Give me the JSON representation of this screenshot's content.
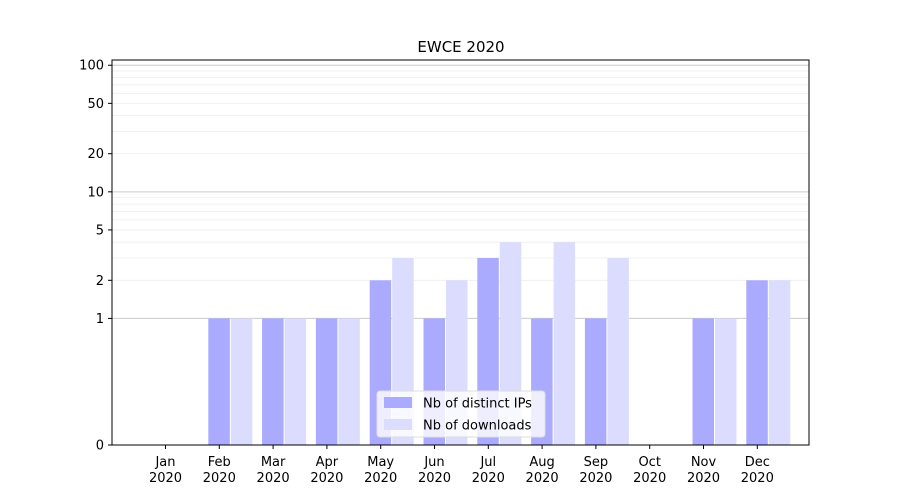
{
  "chart_data": {
    "type": "bar",
    "title": "EWCE 2020",
    "xlabel": "",
    "ylabel": "",
    "yscale": "symlog",
    "ylim": [
      0,
      110
    ],
    "yticks": [
      0,
      1,
      2,
      5,
      10,
      20,
      50,
      100
    ],
    "grid": true,
    "legend_position": "lower center",
    "categories": [
      [
        "Jan",
        "2020"
      ],
      [
        "Feb",
        "2020"
      ],
      [
        "Mar",
        "2020"
      ],
      [
        "Apr",
        "2020"
      ],
      [
        "May",
        "2020"
      ],
      [
        "Jun",
        "2020"
      ],
      [
        "Jul",
        "2020"
      ],
      [
        "Aug",
        "2020"
      ],
      [
        "Sep",
        "2020"
      ],
      [
        "Oct",
        "2020"
      ],
      [
        "Nov",
        "2020"
      ],
      [
        "Dec",
        "2020"
      ]
    ],
    "series": [
      {
        "name": "Nb of distinct IPs",
        "color": "#aaaaff",
        "values": [
          0,
          1,
          1,
          1,
          2,
          1,
          3,
          1,
          1,
          0,
          1,
          2
        ]
      },
      {
        "name": "Nb of downloads",
        "color": "#dcdcff",
        "values": [
          0,
          1,
          1,
          1,
          3,
          2,
          4,
          4,
          3,
          0,
          1,
          2
        ]
      }
    ]
  }
}
